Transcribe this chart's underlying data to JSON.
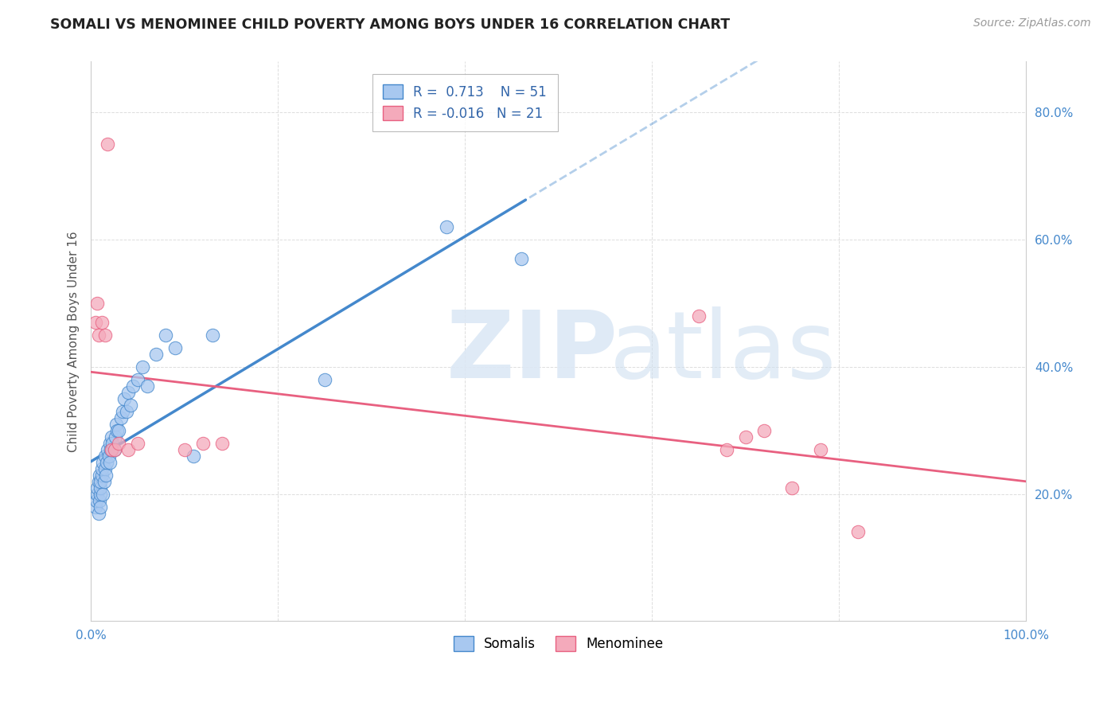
{
  "title": "SOMALI VS MENOMINEE CHILD POVERTY AMONG BOYS UNDER 16 CORRELATION CHART",
  "source": "Source: ZipAtlas.com",
  "ylabel": "Child Poverty Among Boys Under 16",
  "r_somali": 0.713,
  "n_somali": 51,
  "r_menominee": -0.016,
  "n_menominee": 21,
  "xlim": [
    0.0,
    1.0
  ],
  "ylim": [
    0.0,
    0.88
  ],
  "color_somali": "#A8C8F0",
  "color_menominee": "#F4AABB",
  "line_color_somali": "#4488CC",
  "line_color_menominee": "#E86080",
  "tick_color": "#4488CC",
  "background": "#FFFFFF",
  "somali_x": [
    0.005,
    0.006,
    0.007,
    0.007,
    0.008,
    0.008,
    0.009,
    0.009,
    0.01,
    0.01,
    0.01,
    0.01,
    0.012,
    0.012,
    0.013,
    0.013,
    0.014,
    0.015,
    0.015,
    0.016,
    0.017,
    0.018,
    0.019,
    0.02,
    0.02,
    0.021,
    0.022,
    0.023,
    0.025,
    0.026,
    0.027,
    0.028,
    0.03,
    0.032,
    0.034,
    0.036,
    0.038,
    0.04,
    0.042,
    0.045,
    0.05,
    0.055,
    0.06,
    0.07,
    0.08,
    0.09,
    0.11,
    0.13,
    0.25,
    0.38,
    0.46
  ],
  "somali_y": [
    0.18,
    0.19,
    0.2,
    0.21,
    0.17,
    0.22,
    0.19,
    0.23,
    0.18,
    0.2,
    0.21,
    0.22,
    0.23,
    0.24,
    0.2,
    0.25,
    0.22,
    0.24,
    0.26,
    0.23,
    0.25,
    0.27,
    0.26,
    0.25,
    0.28,
    0.27,
    0.29,
    0.28,
    0.27,
    0.29,
    0.31,
    0.3,
    0.3,
    0.32,
    0.33,
    0.35,
    0.33,
    0.36,
    0.34,
    0.37,
    0.38,
    0.4,
    0.37,
    0.42,
    0.45,
    0.43,
    0.26,
    0.45,
    0.38,
    0.62,
    0.57
  ],
  "menominee_x": [
    0.005,
    0.007,
    0.008,
    0.012,
    0.015,
    0.018,
    0.022,
    0.025,
    0.03,
    0.04,
    0.05,
    0.1,
    0.12,
    0.14,
    0.65,
    0.68,
    0.7,
    0.72,
    0.75,
    0.78,
    0.82
  ],
  "menominee_y": [
    0.47,
    0.5,
    0.45,
    0.47,
    0.45,
    0.75,
    0.27,
    0.27,
    0.28,
    0.27,
    0.28,
    0.27,
    0.28,
    0.28,
    0.48,
    0.27,
    0.29,
    0.3,
    0.21,
    0.27,
    0.14
  ],
  "grid_color": "#DDDDDD",
  "spine_color": "#CCCCCC"
}
